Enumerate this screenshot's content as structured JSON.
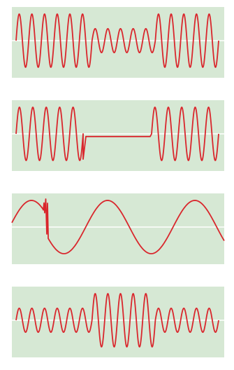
{
  "colors": {
    "panel_background": "#d6e8d4",
    "baseline": "#ffffff",
    "waveform": "#d9262c"
  },
  "chart_data": [
    {
      "type": "line",
      "description_key": "amplitude-modulated-dip",
      "segments": [
        {
          "cycles": 6,
          "amplitude": 1.0
        },
        {
          "cycles": 5,
          "amplitude": 0.45
        },
        {
          "cycles": 5,
          "amplitude": 1.0
        }
      ]
    },
    {
      "type": "line",
      "description_key": "signal-dropout",
      "segments": [
        {
          "cycles": 5,
          "amplitude": 1.0
        },
        {
          "flat_level": -0.1
        },
        {
          "cycles": 5,
          "amplitude": 1.0
        }
      ]
    },
    {
      "type": "line",
      "description_key": "phase-shift-with-glitch",
      "cycles_before": 0.5,
      "cycles_after": 2.5,
      "amplitude": 1.0
    },
    {
      "type": "line",
      "description_key": "amplitude-modulated-bulge",
      "segments": [
        {
          "cycles": 6,
          "amplitude": 0.45
        },
        {
          "cycles": 5,
          "amplitude": 1.0
        },
        {
          "cycles": 5,
          "amplitude": 0.45
        }
      ]
    }
  ]
}
